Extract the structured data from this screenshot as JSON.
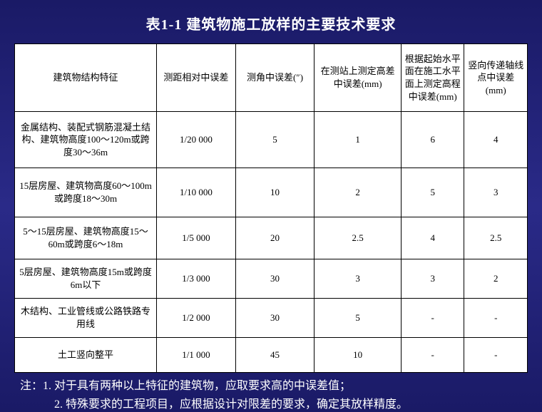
{
  "title": "表1-1  建筑物施工放样的主要技术要求",
  "columns": [
    "建筑物结构特征",
    "测距相对中误差",
    "测角中误差(″)",
    "在测站上测定高差中误差(mm)",
    "根据起始水平面在施工水平面上测定高程中误差(mm)",
    "竖向传递轴线点中误差(mm)"
  ],
  "rows": [
    [
      "金属结构、装配式钢筋混凝土结构、建筑物高度100～120m或跨度30～36m",
      "1/20 000",
      "5",
      "1",
      "6",
      "4"
    ],
    [
      "15层房屋、建筑物高度60～100m或跨度18～30m",
      "1/10 000",
      "10",
      "2",
      "5",
      "3"
    ],
    [
      "5～15层房屋、建筑物高度15～60m或跨度6～18m",
      "1/5 000",
      "20",
      "2.5",
      "4",
      "2.5"
    ],
    [
      "5层房屋、建筑物高度15m或跨度6m以下",
      "1/3 000",
      "30",
      "3",
      "3",
      "2"
    ],
    [
      "木结构、工业管线或公路铁路专用线",
      "1/2 000",
      "30",
      "5",
      "-",
      "-"
    ],
    [
      "土工竖向整平",
      "1/1 000",
      "45",
      "10",
      "-",
      "-"
    ]
  ],
  "notes": {
    "prefix": "注：",
    "line1": "1. 对于具有两种以上特征的建筑物，应取要求高的中误差值；",
    "line2": "2. 特殊要求的工程项目，应根据设计对限差的要求，确定其放样精度。"
  },
  "style": {
    "title_color": "#ffffff",
    "title_fontsize": 20,
    "table_bg": "#ffffff",
    "border_color": "#000000",
    "cell_text_color": "#000000",
    "cell_fontsize": 13,
    "note_color": "#ffffff",
    "note_fontsize": 16,
    "page_bg_gradient": [
      "#1a1a66",
      "#2a2a88",
      "#1a1a66"
    ]
  }
}
